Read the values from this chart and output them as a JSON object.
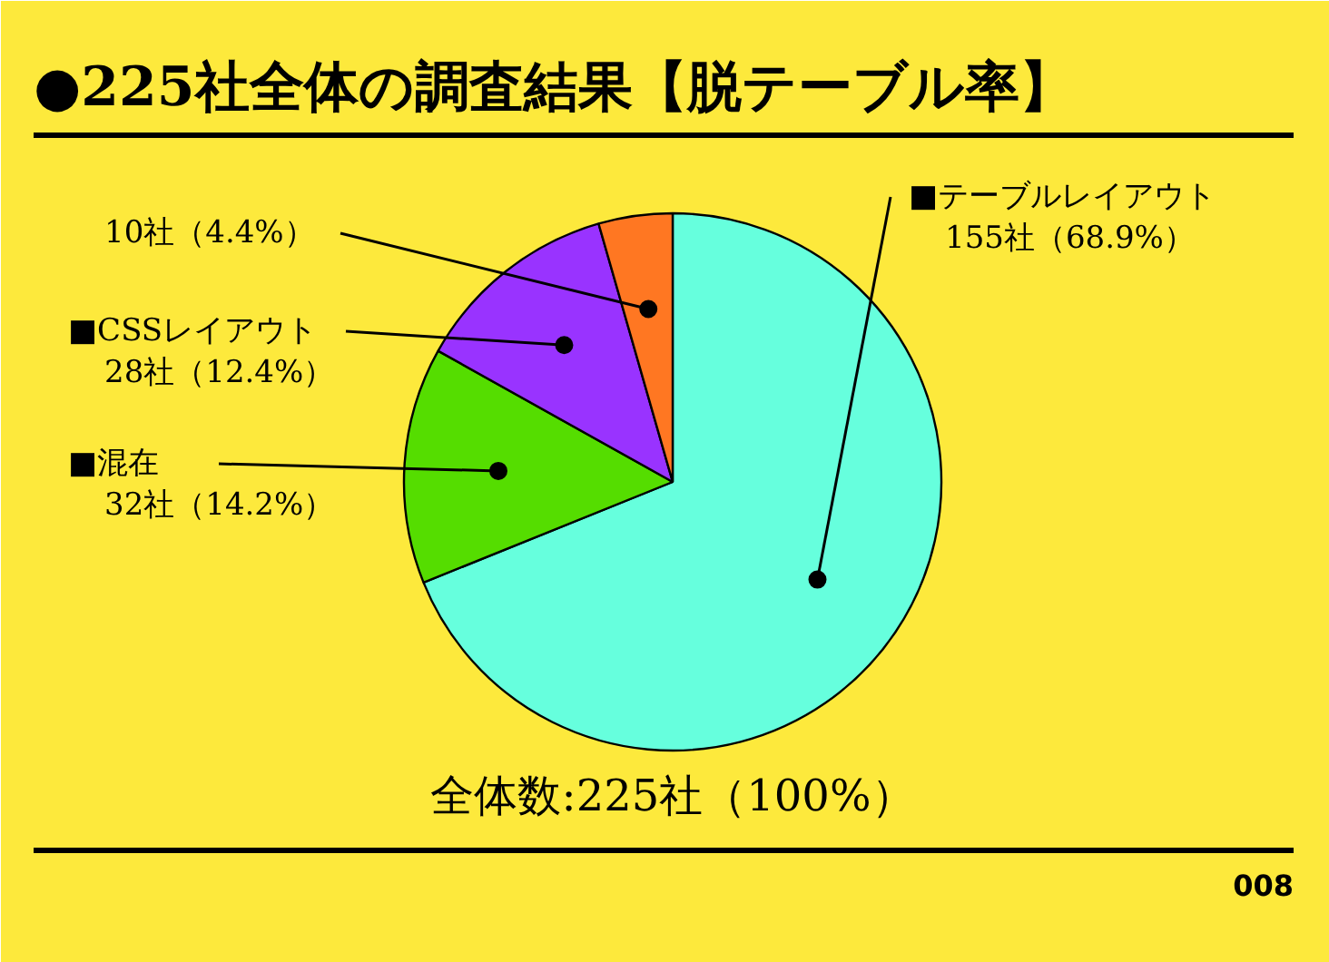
{
  "chart_data": {
    "type": "pie",
    "title": "●225社全体の調査結果【脱テーブル率】",
    "categories": [
      "■テーブルレイアウト",
      "■混在",
      "■CSSレイアウト",
      null
    ],
    "values": [
      155,
      32,
      28,
      10
    ],
    "colors": [
      "#66ffdd",
      "#55dd00",
      "#9933ff",
      "#ff7722"
    ],
    "value_labels": [
      "155社（68.9%）",
      "32社（14.2%）",
      "28社（12.4%）",
      "10社（4.4%）"
    ],
    "annotations": [
      "全体数:225社（100%）",
      "008"
    ]
  }
}
